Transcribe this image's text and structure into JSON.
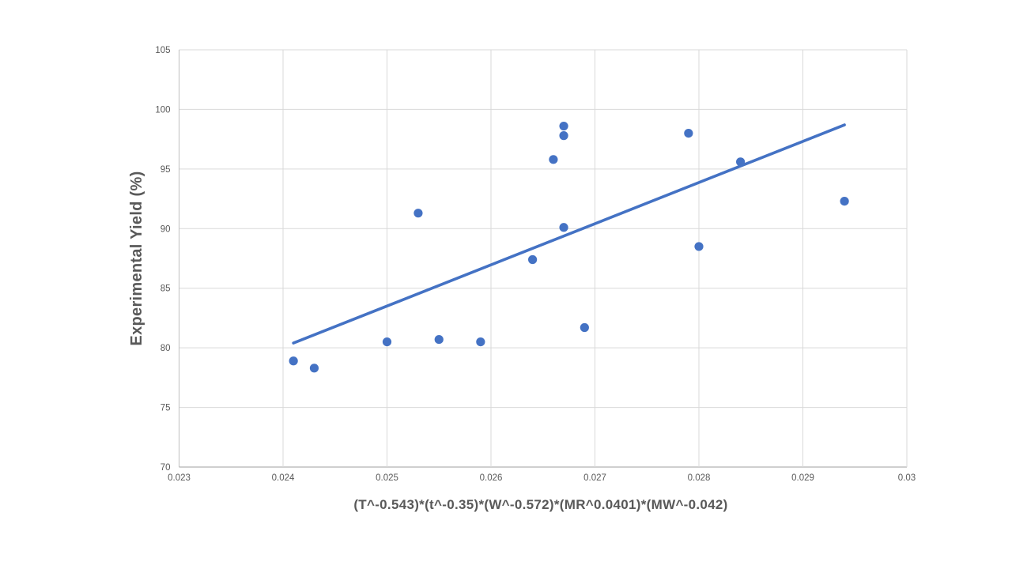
{
  "chart_data": {
    "type": "scatter",
    "title": "",
    "xlabel": "(T^-0.543)*(t^-0.35)*(W^-0.572)*(MR^0.0401)*(MW^-0.042)",
    "ylabel": "Experimental Yield (%)",
    "xlim": [
      0.023,
      0.03
    ],
    "ylim": [
      70,
      105
    ],
    "x_ticks": [
      0.023,
      0.024,
      0.025,
      0.026,
      0.027,
      0.028,
      0.029,
      0.03
    ],
    "x_tick_labels": [
      "0.023",
      "0.024",
      "0.025",
      "0.026",
      "0.027",
      "0.028",
      "0.029",
      "0.03"
    ],
    "y_ticks": [
      70,
      75,
      80,
      85,
      90,
      95,
      100,
      105
    ],
    "y_tick_labels": [
      "70",
      "75",
      "80",
      "85",
      "90",
      "95",
      "100",
      "105"
    ],
    "grid": true,
    "legend": false,
    "series": [
      {
        "name": "Experimental Yield",
        "marker": "circle",
        "points": [
          [
            0.0241,
            78.9
          ],
          [
            0.0243,
            78.3
          ],
          [
            0.025,
            80.5
          ],
          [
            0.0253,
            91.3
          ],
          [
            0.0255,
            80.7
          ],
          [
            0.0259,
            80.5
          ],
          [
            0.0264,
            87.4
          ],
          [
            0.0266,
            95.8
          ],
          [
            0.0267,
            98.6
          ],
          [
            0.0267,
            97.8
          ],
          [
            0.0267,
            90.1
          ],
          [
            0.0269,
            81.7
          ],
          [
            0.0279,
            98.0
          ],
          [
            0.028,
            88.5
          ],
          [
            0.0284,
            95.6
          ],
          [
            0.0294,
            92.3
          ]
        ]
      }
    ],
    "trendline": {
      "x1": 0.0241,
      "y1": 80.4,
      "x2": 0.0294,
      "y2": 98.7
    },
    "colors": {
      "marker": "#4472C4",
      "trendline": "#4472C4",
      "gridline": "#D9D9D9",
      "axis_line": "#BFBFBF",
      "tick_text": "#595959",
      "axis_title_text": "#595959",
      "background": "#FFFFFF"
    }
  }
}
